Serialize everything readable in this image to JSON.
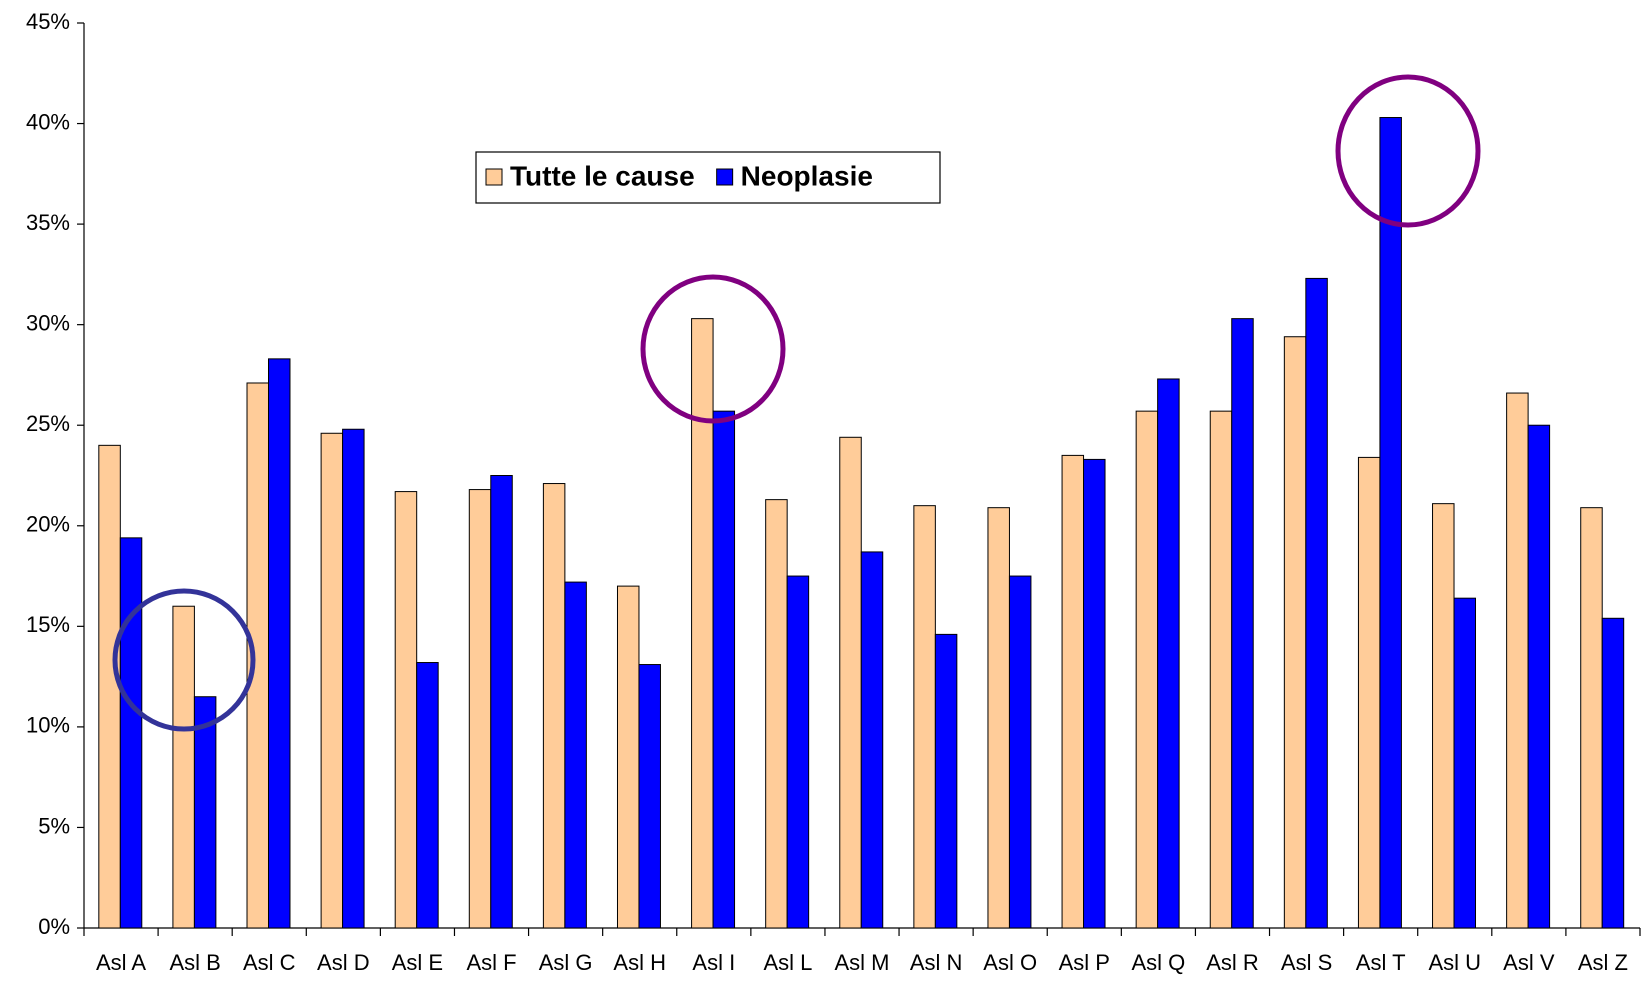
{
  "chart_data": {
    "type": "bar",
    "categories": [
      "Asl  A",
      "Asl  B",
      "Asl  C",
      "Asl  D",
      "Asl  E",
      "Asl  F",
      "Asl  G",
      "Asl  H",
      "Asl  I",
      "Asl  L",
      "Asl  M",
      "Asl  N",
      "Asl  O",
      "Asl  P",
      "Asl  Q",
      "Asl  R",
      "Asl  S",
      "Asl  T",
      "Asl  U",
      "Asl  V",
      "Asl  Z"
    ],
    "series": [
      {
        "name": "Tutte le cause",
        "color": "#ffcc99",
        "values": [
          24.0,
          16.0,
          27.1,
          24.6,
          21.7,
          21.8,
          22.1,
          17.0,
          30.3,
          21.3,
          24.4,
          21.0,
          20.9,
          23.5,
          25.7,
          25.7,
          29.4,
          23.4,
          21.1,
          26.6,
          20.9
        ]
      },
      {
        "name": "Neoplasie",
        "color": "#0000ff",
        "values": [
          19.4,
          11.5,
          28.3,
          24.8,
          13.2,
          22.5,
          17.2,
          13.1,
          25.7,
          17.5,
          18.7,
          14.6,
          17.5,
          23.3,
          27.3,
          30.3,
          32.3,
          40.3,
          16.4,
          25.0,
          15.4
        ]
      }
    ],
    "ylim": [
      0,
      45
    ],
    "yticks": [
      {
        "value": 0,
        "label": "0%"
      },
      {
        "value": 5,
        "label": "5%"
      },
      {
        "value": 10,
        "label": "10%"
      },
      {
        "value": 15,
        "label": "15%"
      },
      {
        "value": 20,
        "label": "20%"
      },
      {
        "value": 25,
        "label": "25%"
      },
      {
        "value": 30,
        "label": "30%"
      },
      {
        "value": 35,
        "label": "35%"
      },
      {
        "value": 40,
        "label": "40%"
      },
      {
        "value": 45,
        "label": "45%"
      }
    ],
    "grid": false
  }
}
